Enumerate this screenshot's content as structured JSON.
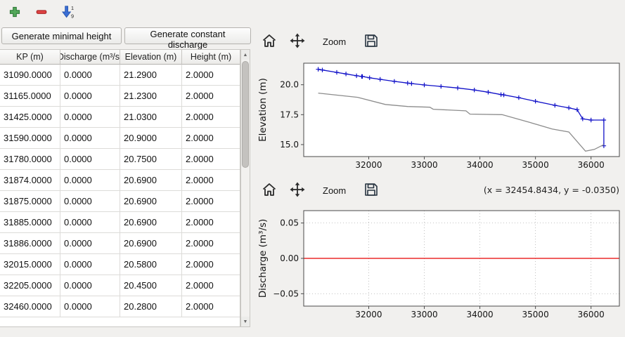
{
  "main_toolbar": {
    "buttons": [
      {
        "name": "add-row-button",
        "icon": "plus-icon"
      },
      {
        "name": "remove-row-button",
        "icon": "minus-icon"
      },
      {
        "name": "sort-rows-button",
        "icon": "sort-numeric-down-icon",
        "sort_from": "1",
        "sort_to": "9"
      }
    ]
  },
  "left_panel": {
    "generate_minimal_height_label": "Generate minimal height",
    "generate_constant_discharge_label": "Generate constant discharge",
    "table": {
      "columns": [
        "KP (m)",
        "Discharge (m³/s)",
        "Elevation (m)",
        "Height (m)"
      ],
      "rows": [
        [
          "31090.0000",
          "0.0000",
          "21.2900",
          "2.0000"
        ],
        [
          "31165.0000",
          "0.0000",
          "21.2300",
          "2.0000"
        ],
        [
          "31425.0000",
          "0.0000",
          "21.0300",
          "2.0000"
        ],
        [
          "31590.0000",
          "0.0000",
          "20.9000",
          "2.0000"
        ],
        [
          "31780.0000",
          "0.0000",
          "20.7500",
          "2.0000"
        ],
        [
          "31874.0000",
          "0.0000",
          "20.6900",
          "2.0000"
        ],
        [
          "31875.0000",
          "0.0000",
          "20.6900",
          "2.0000"
        ],
        [
          "31885.0000",
          "0.0000",
          "20.6900",
          "2.0000"
        ],
        [
          "31886.0000",
          "0.0000",
          "20.6900",
          "2.0000"
        ],
        [
          "32015.0000",
          "0.0000",
          "20.5800",
          "2.0000"
        ],
        [
          "32205.0000",
          "0.0000",
          "20.4500",
          "2.0000"
        ],
        [
          "32460.0000",
          "0.0000",
          "20.2800",
          "2.0000"
        ]
      ]
    }
  },
  "plot_toolbar": {
    "zoom_label": "Zoom",
    "icons": [
      "home-icon",
      "pan-icon",
      "save-icon"
    ]
  },
  "readout": "(x = 32454.8434,  y = -0.0350)",
  "colors": {
    "elevation_line": "#1010c8",
    "bottom_line": "#8c8c8c",
    "discharge_line": "#e60000"
  },
  "chart_data": [
    {
      "type": "line",
      "ylabel": "Elevation (m)",
      "xlim": [
        30830,
        36510
      ],
      "ylim": [
        14.0,
        21.8
      ],
      "xticks": [
        32000,
        33000,
        34000,
        35000,
        36000
      ],
      "xtick_labels": [
        "32000",
        "33000",
        "34000",
        "35000",
        "36000"
      ],
      "yticks": [
        15.0,
        17.5,
        20.0
      ],
      "ytick_labels": [
        "15.0",
        "17.5",
        "20.0"
      ],
      "grid": false,
      "series": [
        {
          "name": "elevation",
          "color": "#1010c8",
          "marker": "plus",
          "points": [
            [
              31090,
              21.29
            ],
            [
              31165,
              21.23
            ],
            [
              31425,
              21.03
            ],
            [
              31590,
              20.9
            ],
            [
              31780,
              20.75
            ],
            [
              31874,
              20.69
            ],
            [
              31885,
              20.69
            ],
            [
              32015,
              20.58
            ],
            [
              32205,
              20.45
            ],
            [
              32460,
              20.28
            ],
            [
              32700,
              20.14
            ],
            [
              32770,
              20.1
            ],
            [
              33000,
              19.98
            ],
            [
              33300,
              19.86
            ],
            [
              33600,
              19.73
            ],
            [
              33900,
              19.56
            ],
            [
              34150,
              19.38
            ],
            [
              34380,
              19.18
            ],
            [
              34430,
              19.15
            ],
            [
              34700,
              18.92
            ],
            [
              35000,
              18.62
            ],
            [
              35350,
              18.28
            ],
            [
              35600,
              18.07
            ],
            [
              35750,
              17.92
            ],
            [
              35850,
              17.15
            ],
            [
              36000,
              17.05
            ],
            [
              36230,
              17.05
            ],
            [
              36230,
              14.9
            ]
          ]
        },
        {
          "name": "bottom-elevation",
          "color": "#8c8c8c",
          "marker": null,
          "points": [
            [
              31090,
              19.3
            ],
            [
              31800,
              18.95
            ],
            [
              32300,
              18.35
            ],
            [
              32700,
              18.18
            ],
            [
              33100,
              18.12
            ],
            [
              33160,
              17.95
            ],
            [
              33750,
              17.82
            ],
            [
              33820,
              17.55
            ],
            [
              34400,
              17.5
            ],
            [
              34900,
              16.85
            ],
            [
              35300,
              16.3
            ],
            [
              35600,
              16.05
            ],
            [
              35900,
              14.45
            ],
            [
              36060,
              14.6
            ],
            [
              36230,
              15.0
            ]
          ]
        }
      ]
    },
    {
      "type": "line",
      "ylabel": "Discharge (m³/s)",
      "xlim": [
        30830,
        36510
      ],
      "ylim": [
        -0.0675,
        0.0675
      ],
      "xticks": [
        32000,
        33000,
        34000,
        35000,
        36000
      ],
      "xtick_labels": [
        "32000",
        "33000",
        "34000",
        "35000",
        "36000"
      ],
      "yticks": [
        -0.05,
        0.0,
        0.05
      ],
      "ytick_labels": [
        "−0.05",
        "0.00",
        "0.05"
      ],
      "grid": true,
      "series": [
        {
          "name": "discharge",
          "color": "#e60000",
          "marker": null,
          "points": [
            [
              30830,
              0.0
            ],
            [
              36510,
              0.0
            ]
          ]
        }
      ]
    }
  ]
}
